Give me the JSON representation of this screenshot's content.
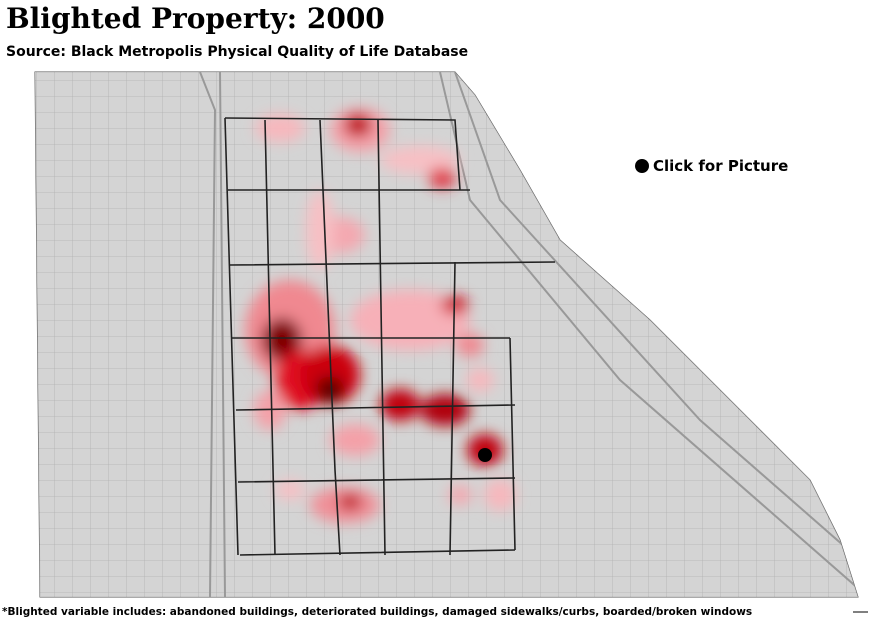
{
  "header": {
    "title": "Blighted Property: 2000",
    "source": "Source: Black Metropolis Physical Quality of Life Database"
  },
  "legend": {
    "label": "Click for Picture"
  },
  "footnote": "*Blighted variable includes: abandoned buildings, deteriorated buildings, damaged sidewalks/curbs, boarded/broken windows"
}
